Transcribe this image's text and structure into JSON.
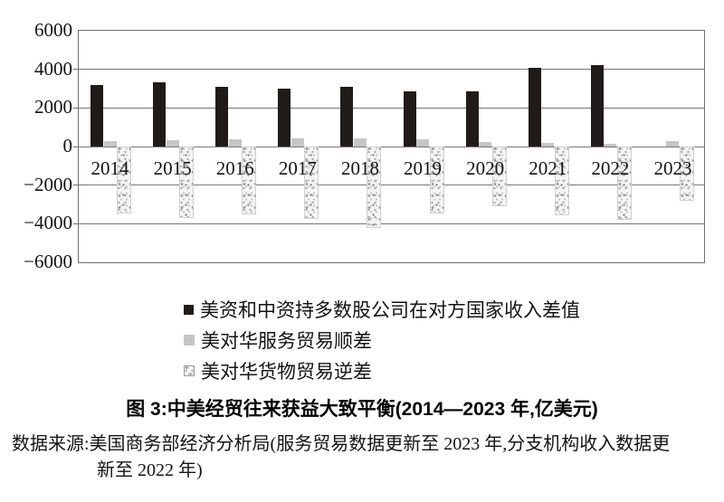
{
  "chart_data": {
    "type": "bar",
    "title": "图 3:中美经贸往来获益大致平衡(2014—2023 年,亿美元)",
    "unit": "亿美元",
    "categories": [
      "2014",
      "2015",
      "2016",
      "2017",
      "2018",
      "2019",
      "2020",
      "2021",
      "2022",
      "2023"
    ],
    "series": [
      {
        "name": "美资和中资持多数股公司在对方国家收入差值",
        "style": "solid-black",
        "color": "#201b18",
        "values": [
          3200,
          3350,
          3100,
          3000,
          3100,
          2850,
          2870,
          4100,
          4200,
          null
        ]
      },
      {
        "name": "美对华服务贸易顺差",
        "style": "solid-light-gray",
        "color": "#c6c6c6",
        "values": [
          270,
          310,
          380,
          400,
          410,
          370,
          250,
          180,
          130,
          290
        ]
      },
      {
        "name": "美对华货物贸易逆差",
        "style": "speckled-texture",
        "color": "#f4f4f4",
        "values": [
          -3450,
          -3700,
          -3500,
          -3750,
          -4200,
          -3450,
          -3100,
          -3550,
          -3800,
          -2800
        ]
      }
    ],
    "ylim": [
      -6000,
      6000
    ],
    "yticks": [
      6000,
      4000,
      2000,
      0,
      -2000,
      -4000,
      -6000
    ],
    "grid": "horizontal",
    "legend_position": "below-left",
    "xlabel": "",
    "ylabel": ""
  },
  "caption": "图 3:中美经贸往来获益大致平衡(2014—2023 年,亿美元)",
  "source": {
    "line1": "数据来源:美国商务部经济分析局(服务贸易数据更新至 2023 年,分支机构收入数据更",
    "line2": "新至 2022 年)"
  }
}
